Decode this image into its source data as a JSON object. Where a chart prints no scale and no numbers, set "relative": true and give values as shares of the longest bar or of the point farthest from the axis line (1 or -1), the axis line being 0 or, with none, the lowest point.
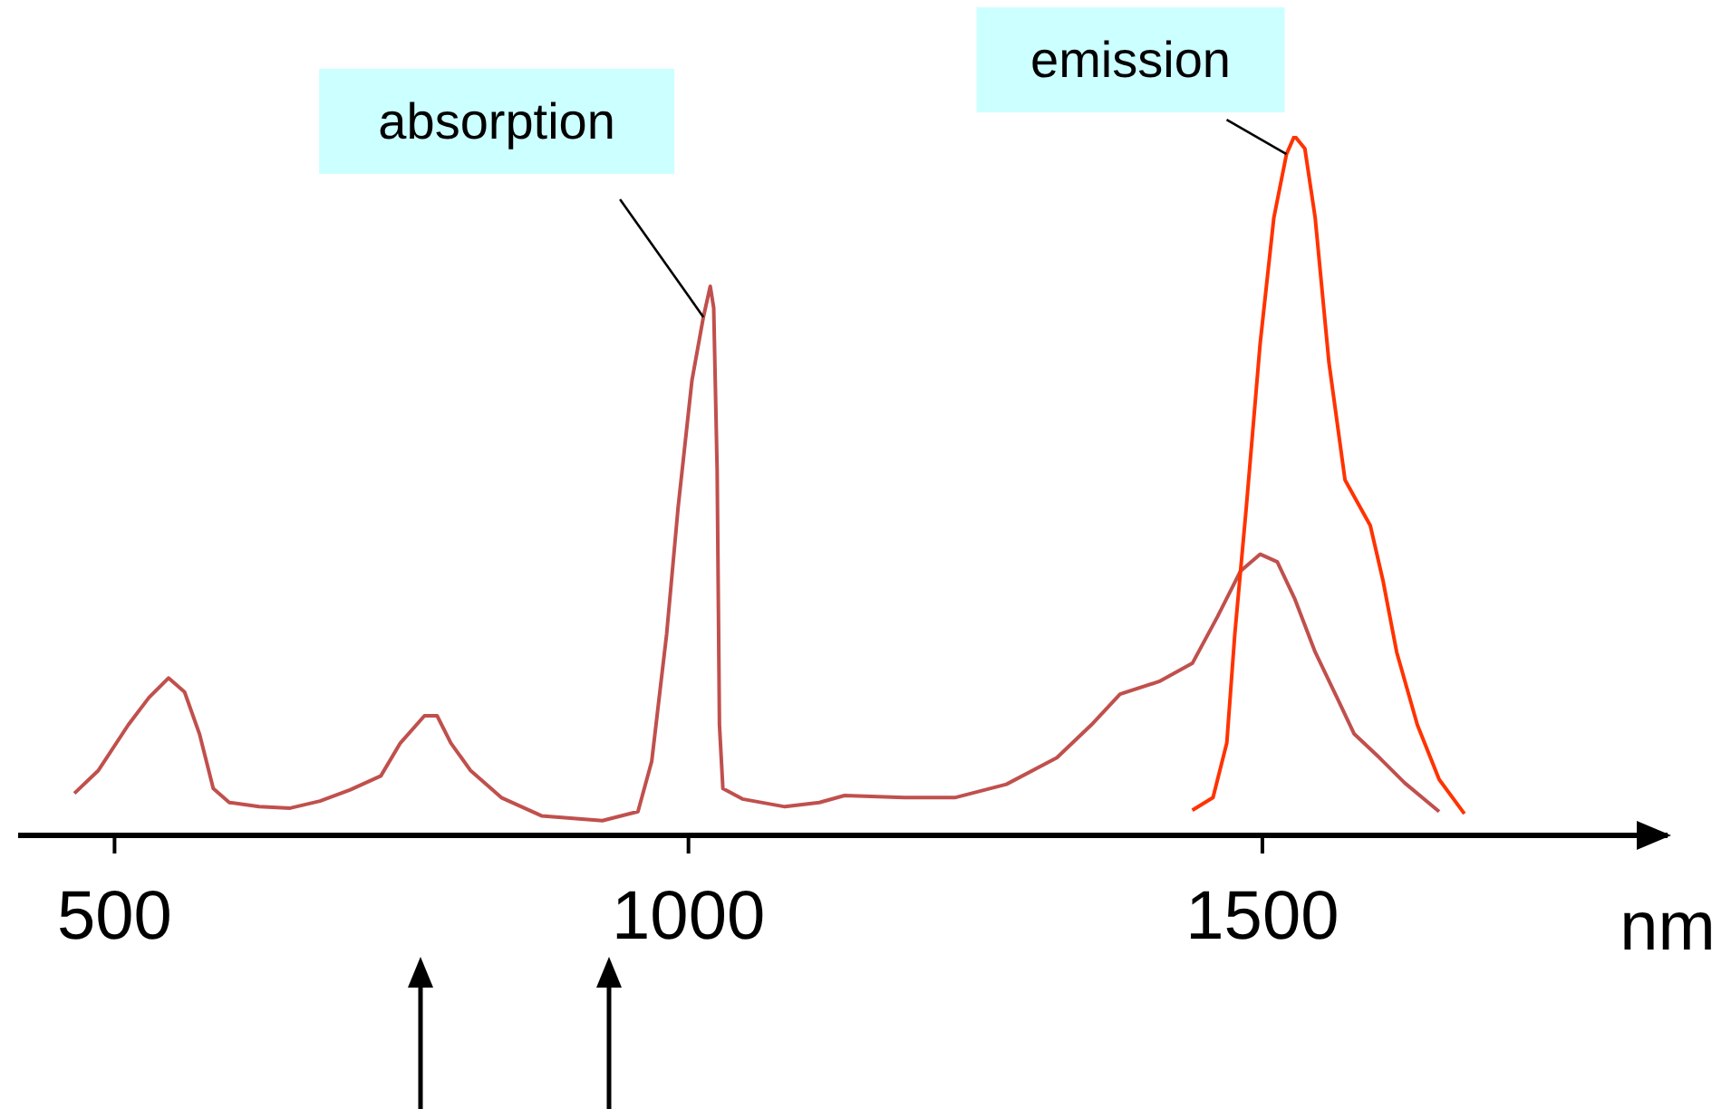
{
  "chart_data": {
    "type": "line",
    "relative": true,
    "xlabel": "nm",
    "xlim": [
      416,
      1853
    ],
    "xticks": [
      500,
      1000,
      1500
    ],
    "grid": false,
    "legend": false,
    "marker": "none",
    "line_style": "solid",
    "series": [
      {
        "color": "#c0504d",
        "x": [
          465,
          486,
          512,
          530,
          547,
          561,
          574,
          586,
          600,
          626,
          653,
          679,
          705,
          732,
          749,
          770,
          781,
          793,
          810,
          837,
          872,
          925,
          956,
          968,
          981,
          991,
          1003,
          1013,
          1019,
          1022,
          1025,
          1027,
          1030,
          1047,
          1084,
          1114,
          1136,
          1188,
          1232,
          1277,
          1321,
          1351,
          1376,
          1410,
          1439,
          1461,
          1481,
          1498,
          1513,
          1528,
          1546,
          1565,
          1580,
          1602,
          1624,
          1654
        ],
        "values": [
          0.06,
          0.093,
          0.158,
          0.197,
          0.225,
          0.205,
          0.145,
          0.067,
          0.047,
          0.041,
          0.039,
          0.049,
          0.065,
          0.085,
          0.132,
          0.171,
          0.171,
          0.132,
          0.093,
          0.054,
          0.028,
          0.021,
          0.034,
          0.106,
          0.288,
          0.469,
          0.65,
          0.741,
          0.785,
          0.754,
          0.521,
          0.158,
          0.067,
          0.052,
          0.041,
          0.047,
          0.057,
          0.054,
          0.054,
          0.073,
          0.111,
          0.158,
          0.202,
          0.22,
          0.246,
          0.313,
          0.378,
          0.402,
          0.391,
          0.339,
          0.262,
          0.197,
          0.145,
          0.111,
          0.075,
          0.034
        ]
      },
      {
        "color": "#ff3300",
        "x": [
          1439,
          1457,
          1469,
          1476,
          1486,
          1498,
          1510,
          1521,
          1528,
          1537,
          1546,
          1558,
          1572,
          1594,
          1605,
          1617,
          1635,
          1654,
          1676
        ],
        "values": [
          0.036,
          0.054,
          0.132,
          0.288,
          0.469,
          0.702,
          0.883,
          0.974,
          1,
          0.982,
          0.883,
          0.676,
          0.508,
          0.443,
          0.365,
          0.262,
          0.158,
          0.08,
          0.031
        ]
      }
    ],
    "annotations": [
      {
        "text": "absorption",
        "x": 1013,
        "y": 0.741
      },
      {
        "text": "emission",
        "x": 1521,
        "y": 0.974
      }
    ]
  }
}
